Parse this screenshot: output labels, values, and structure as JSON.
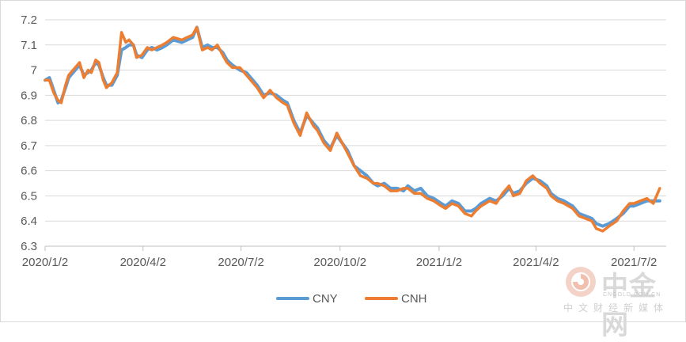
{
  "chart_data": {
    "type": "line",
    "title": "",
    "xlabel": "",
    "ylabel": "",
    "ylim": [
      6.3,
      7.2
    ],
    "yticks": [
      "6.3",
      "6.4",
      "6.5",
      "6.6",
      "6.7",
      "6.8",
      "6.9",
      "7",
      "7.1",
      "7.2"
    ],
    "xticks": [
      "2020/1/2",
      "2020/4/2",
      "2020/7/2",
      "2020/10/2",
      "2021/1/2",
      "2021/4/2",
      "2021/7/2"
    ],
    "grid": "horizontal",
    "legend": "bottom",
    "series": [
      {
        "name": "CNY",
        "color": "#5b9bd5",
        "x": [
          "2020/1/2",
          "2020/1/6",
          "2020/1/10",
          "2020/1/14",
          "2020/1/17",
          "2020/1/21",
          "2020/1/24",
          "2020/2/3",
          "2020/2/7",
          "2020/2/11",
          "2020/2/14",
          "2020/2/18",
          "2020/2/21",
          "2020/2/25",
          "2020/2/28",
          "2020/3/4",
          "2020/3/9",
          "2020/3/13",
          "2020/3/17",
          "2020/3/20",
          "2020/3/24",
          "2020/3/27",
          "2020/4/1",
          "2020/4/6",
          "2020/4/10",
          "2020/4/15",
          "2020/4/20",
          "2020/4/24",
          "2020/4/30",
          "2020/5/8",
          "2020/5/13",
          "2020/5/18",
          "2020/5/22",
          "2020/5/27",
          "2020/6/1",
          "2020/6/5",
          "2020/6/10",
          "2020/6/15",
          "2020/6/19",
          "2020/6/24",
          "2020/7/1",
          "2020/7/7",
          "2020/7/13",
          "2020/7/17",
          "2020/7/23",
          "2020/7/29",
          "2020/8/4",
          "2020/8/10",
          "2020/8/14",
          "2020/8/20",
          "2020/8/26",
          "2020/9/1",
          "2020/9/7",
          "2020/9/11",
          "2020/9/17",
          "2020/9/23",
          "2020/9/29",
          "2020/10/9",
          "2020/10/15",
          "2020/10/21",
          "2020/10/27",
          "2020/11/2",
          "2020/11/6",
          "2020/11/12",
          "2020/11/18",
          "2020/11/24",
          "2020/11/30",
          "2020/12/4",
          "2020/12/10",
          "2020/12/16",
          "2020/12/22",
          "2020/12/28",
          "2021/1/4",
          "2021/1/8",
          "2021/1/14",
          "2021/1/20",
          "2021/1/26",
          "2021/2/1",
          "2021/2/5",
          "2021/2/10",
          "2021/2/18",
          "2021/2/24",
          "2021/3/2",
          "2021/3/8",
          "2021/3/12",
          "2021/3/18",
          "2021/3/24",
          "2021/3/30",
          "2021/4/6",
          "2021/4/12",
          "2021/4/16",
          "2021/4/22",
          "2021/4/28",
          "2021/5/6",
          "2021/5/12",
          "2021/5/18",
          "2021/5/24",
          "2021/5/28",
          "2021/6/3",
          "2021/6/9",
          "2021/6/16",
          "2021/6/22",
          "2021/6/28",
          "2021/7/2",
          "2021/7/8",
          "2021/7/14",
          "2021/7/20",
          "2021/7/26"
        ],
        "values": [
          6.96,
          6.97,
          6.92,
          6.87,
          6.88,
          6.93,
          6.97,
          7.02,
          6.98,
          6.99,
          7.0,
          7.03,
          7.02,
          6.97,
          6.94,
          6.94,
          6.98,
          7.08,
          7.09,
          7.1,
          7.1,
          7.06,
          7.05,
          7.08,
          7.09,
          7.08,
          7.09,
          7.1,
          7.12,
          7.11,
          7.12,
          7.13,
          7.17,
          7.09,
          7.1,
          7.09,
          7.09,
          7.07,
          7.04,
          7.02,
          7.0,
          6.99,
          6.96,
          6.94,
          6.9,
          6.91,
          6.9,
          6.88,
          6.87,
          6.8,
          6.75,
          6.82,
          6.79,
          6.77,
          6.72,
          6.69,
          6.74,
          6.68,
          6.62,
          6.6,
          6.58,
          6.55,
          6.54,
          6.55,
          6.53,
          6.53,
          6.52,
          6.54,
          6.52,
          6.53,
          6.5,
          6.49,
          6.47,
          6.46,
          6.48,
          6.47,
          6.44,
          6.44,
          6.45,
          6.47,
          6.49,
          6.48,
          6.5,
          6.53,
          6.51,
          6.52,
          6.55,
          6.57,
          6.56,
          6.54,
          6.51,
          6.49,
          6.48,
          6.46,
          6.43,
          6.42,
          6.41,
          6.39,
          6.38,
          6.39,
          6.41,
          6.43,
          6.46,
          6.46,
          6.47,
          6.48,
          6.48,
          6.48
        ]
      },
      {
        "name": "CNH",
        "color": "#ed7d31",
        "x": [
          "2020/1/2",
          "2020/1/6",
          "2020/1/10",
          "2020/1/14",
          "2020/1/17",
          "2020/1/21",
          "2020/1/24",
          "2020/2/3",
          "2020/2/7",
          "2020/2/11",
          "2020/2/14",
          "2020/2/18",
          "2020/2/21",
          "2020/2/25",
          "2020/2/28",
          "2020/3/4",
          "2020/3/9",
          "2020/3/13",
          "2020/3/17",
          "2020/3/20",
          "2020/3/24",
          "2020/3/27",
          "2020/4/1",
          "2020/4/6",
          "2020/4/10",
          "2020/4/15",
          "2020/4/20",
          "2020/4/24",
          "2020/4/30",
          "2020/5/8",
          "2020/5/13",
          "2020/5/18",
          "2020/5/22",
          "2020/5/27",
          "2020/6/1",
          "2020/6/5",
          "2020/6/10",
          "2020/6/15",
          "2020/6/19",
          "2020/6/24",
          "2020/7/1",
          "2020/7/7",
          "2020/7/13",
          "2020/7/17",
          "2020/7/23",
          "2020/7/29",
          "2020/8/4",
          "2020/8/10",
          "2020/8/14",
          "2020/8/20",
          "2020/8/26",
          "2020/9/1",
          "2020/9/7",
          "2020/9/11",
          "2020/9/17",
          "2020/9/23",
          "2020/9/29",
          "2020/10/9",
          "2020/10/15",
          "2020/10/21",
          "2020/10/27",
          "2020/11/2",
          "2020/11/6",
          "2020/11/12",
          "2020/11/18",
          "2020/11/24",
          "2020/11/30",
          "2020/12/4",
          "2020/12/10",
          "2020/12/16",
          "2020/12/22",
          "2020/12/28",
          "2021/1/4",
          "2021/1/8",
          "2021/1/14",
          "2021/1/20",
          "2021/1/26",
          "2021/2/1",
          "2021/2/5",
          "2021/2/10",
          "2021/2/18",
          "2021/2/24",
          "2021/3/2",
          "2021/3/8",
          "2021/3/12",
          "2021/3/18",
          "2021/3/24",
          "2021/3/30",
          "2021/4/6",
          "2021/4/12",
          "2021/4/16",
          "2021/4/22",
          "2021/4/28",
          "2021/5/6",
          "2021/5/12",
          "2021/5/18",
          "2021/5/24",
          "2021/5/28",
          "2021/6/3",
          "2021/6/9",
          "2021/6/16",
          "2021/6/22",
          "2021/6/28",
          "2021/7/2",
          "2021/7/8",
          "2021/7/14",
          "2021/7/20",
          "2021/7/26"
        ],
        "values": [
          6.96,
          6.96,
          6.91,
          6.88,
          6.87,
          6.94,
          6.98,
          7.03,
          6.97,
          7.0,
          6.99,
          7.04,
          7.03,
          6.96,
          6.93,
          6.95,
          6.99,
          7.15,
          7.11,
          7.12,
          7.1,
          7.05,
          7.06,
          7.09,
          7.08,
          7.09,
          7.1,
          7.11,
          7.13,
          7.12,
          7.13,
          7.14,
          7.17,
          7.08,
          7.09,
          7.08,
          7.1,
          7.06,
          7.03,
          7.01,
          7.01,
          6.98,
          6.95,
          6.93,
          6.89,
          6.92,
          6.89,
          6.87,
          6.86,
          6.79,
          6.74,
          6.83,
          6.78,
          6.76,
          6.71,
          6.68,
          6.75,
          6.67,
          6.62,
          6.58,
          6.57,
          6.55,
          6.55,
          6.54,
          6.52,
          6.52,
          6.53,
          6.53,
          6.51,
          6.51,
          6.49,
          6.48,
          6.46,
          6.45,
          6.47,
          6.46,
          6.43,
          6.42,
          6.44,
          6.46,
          6.48,
          6.47,
          6.51,
          6.54,
          6.5,
          6.51,
          6.56,
          6.58,
          6.55,
          6.53,
          6.5,
          6.48,
          6.47,
          6.45,
          6.42,
          6.41,
          6.4,
          6.37,
          6.36,
          6.38,
          6.4,
          6.44,
          6.47,
          6.47,
          6.48,
          6.49,
          6.47,
          6.53
        ]
      }
    ]
  },
  "watermark": {
    "name": "中金网",
    "domain": "CNGOLD.COM.CN",
    "tagline": "中文财经新媒体"
  }
}
